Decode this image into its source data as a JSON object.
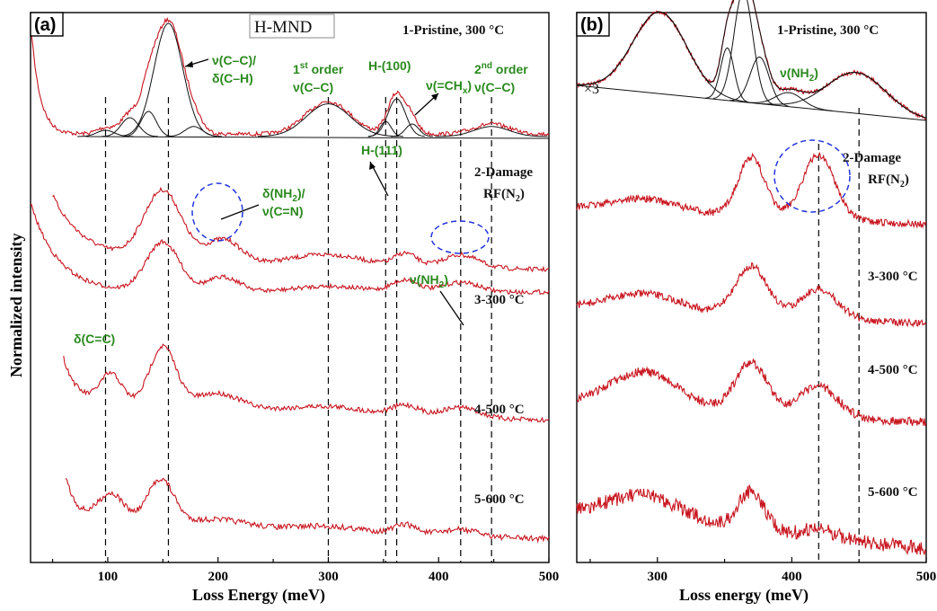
{
  "chart_data": [
    {
      "panel": "(a)",
      "type": "line",
      "sample": "H-MND",
      "xlabel": "Loss Energy (meV)",
      "ylabel": "Normalized intensity",
      "xlim": [
        30,
        500
      ],
      "xticks": [
        100,
        200,
        300,
        400,
        500
      ],
      "dashed_lines_meV": [
        98,
        155,
        300,
        352,
        362,
        420,
        448
      ],
      "series": [
        {
          "name": "1-Pristine, 300 °C",
          "peaks_meV": [
            98,
            120,
            137,
            155,
            178,
            300,
            352,
            362,
            376,
            448
          ],
          "x_start": 30
        },
        {
          "name": "2-Damage RF(N2)",
          "peaks_meV": [
            150,
            200,
            300,
            370,
            420
          ],
          "x_start": 50
        },
        {
          "name": "3-300 °C",
          "peaks_meV": [
            150,
            200,
            300,
            370,
            420
          ],
          "x_start": 30
        },
        {
          "name": "4-500 °C",
          "peaks_meV": [
            103,
            150,
            200,
            300,
            370,
            420
          ],
          "x_start": 60
        },
        {
          "name": "5-600 °C",
          "peaks_meV": [
            103,
            150,
            300,
            370,
            420
          ],
          "x_start": 62
        }
      ],
      "annotations": {
        "nu_cc_dch": "ν(C–C)/ δ(C–H)",
        "first_order": "1st order ν(C–C)",
        "h100": "H-(100)",
        "ch_x": "ν(=CHx)",
        "second_order": "2nd order ν(C–C)",
        "h111": "H-(111)",
        "dnh2": "δ(NH2)/ ν(C=N)",
        "nh2": "ν(NH2)",
        "dcc": "δ(C=C)"
      }
    },
    {
      "panel": "(b)",
      "type": "line",
      "xlabel": "Loss energy (meV)",
      "xlim": [
        240,
        500
      ],
      "xticks": [
        300,
        400,
        500
      ],
      "dashed_lines_meV": [
        420,
        450
      ],
      "scale_label": "×3",
      "series": [
        {
          "name": "1-Pristine, 300 °C",
          "peaks_meV": [
            302,
            352,
            364,
            376,
            398,
            448
          ]
        },
        {
          "name": "2-Damage RF(N2)",
          "peaks_meV": [
            290,
            370,
            420
          ]
        },
        {
          "name": "3-300 °C",
          "peaks_meV": [
            290,
            370,
            420
          ]
        },
        {
          "name": "4-500 °C",
          "peaks_meV": [
            290,
            370,
            420
          ]
        },
        {
          "name": "5-600 °C",
          "peaks_meV": [
            290,
            370
          ]
        }
      ],
      "annotations": {
        "nh2": "ν(NH2)"
      }
    }
  ],
  "labels": {
    "a_panel": "(a)",
    "b_panel": "(b)",
    "sample": "H-MND",
    "ylabel": "Normalized intensity",
    "a_xlabel": "Loss Energy (meV)",
    "b_xlabel": "Loss energy (meV)",
    "s1": "1-Pristine, 300 °C",
    "s2a": "2-Damage",
    "s2b": "RF(N",
    "s2c": "2",
    "s2d": ")",
    "s3": "3-300 °C",
    "s4": "4-500 °C",
    "s5": "5-600 °C",
    "x3": "×3",
    "ann_nu_cc_1": "ν(C–C)/",
    "ann_nu_cc_2": "δ(C–H)",
    "ann_first_1": "1",
    "ann_first_sup": "st",
    "ann_first_2": " order",
    "ann_first_3": "ν(C–C)",
    "ann_h100": "H-(100)",
    "ann_chx": "ν(=CH",
    "ann_chx_sub": "x",
    "ann_chx_end": ")",
    "ann_second_1": "2",
    "ann_second_sup": "nd",
    "ann_second_2": " order",
    "ann_second_3": "ν(C–C)",
    "ann_h111": "H-(111)",
    "ann_dnh2_1": "δ(NH",
    "ann_dnh2_sub": "2",
    "ann_dnh2_end": ")/",
    "ann_dnh2_2": "ν(C=N)",
    "ann_nh2": "ν(NH",
    "ann_nh2_sub": "2",
    "ann_nh2_end": ")",
    "ann_dcc": "δ(C=C)"
  }
}
